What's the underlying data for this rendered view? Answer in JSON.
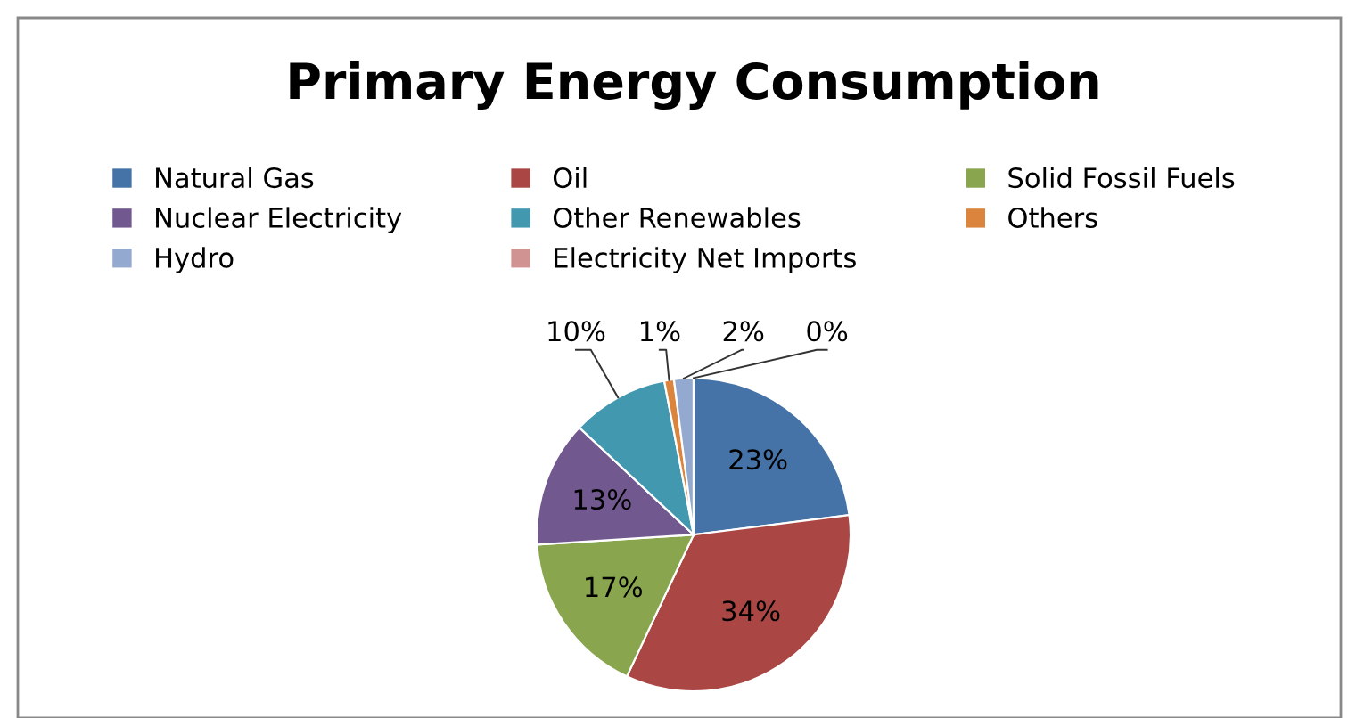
{
  "chart_data": {
    "type": "pie",
    "title": "Primary Energy Consumption",
    "categories": [
      "Natural Gas",
      "Oil",
      "Solid Fossil Fuels",
      "Nuclear Electricity",
      "Other Renewables",
      "Others",
      "Hydro",
      "Electricity Net Imports"
    ],
    "values": [
      23,
      34,
      17,
      13,
      10,
      1,
      2,
      0
    ],
    "colors": [
      "#4572a7",
      "#aa4643",
      "#89a54e",
      "#71588f",
      "#4198af",
      "#db843d",
      "#93a9cf",
      "#d19392"
    ],
    "value_labels": [
      "23%",
      "34%",
      "17%",
      "13%",
      "10%",
      "1%",
      "2%",
      "0%"
    ],
    "legend": "top"
  }
}
